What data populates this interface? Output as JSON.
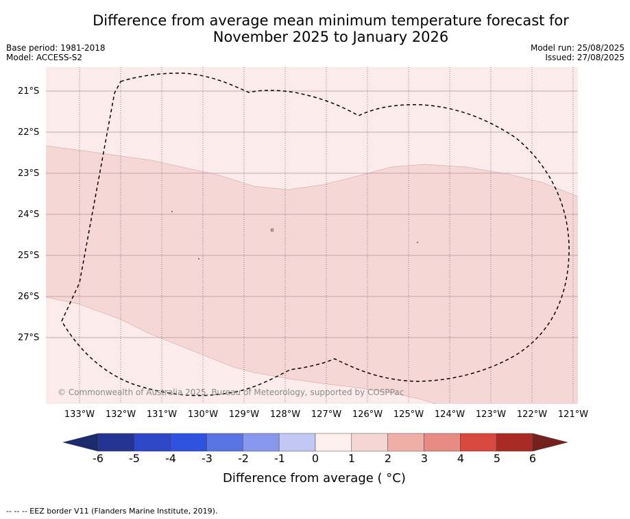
{
  "header": {
    "title_line1": "Difference from average mean minimum temperature forecast for",
    "title_line2": "November 2025 to January 2026",
    "base_period": "Base period: 1981-2018",
    "model": "Model: ACCESS-S2",
    "model_run": "Model run: 25/08/2025",
    "issued": "Issued: 27/08/2025"
  },
  "map": {
    "latitude_labels": [
      "21°S",
      "22°S",
      "23°S",
      "24°S",
      "25°S",
      "26°S",
      "27°S"
    ],
    "longitude_labels": [
      "133°W",
      "132°W",
      "131°W",
      "130°W",
      "129°W",
      "128°W",
      "127°W",
      "126°W",
      "125°W",
      "124°W",
      "123°W",
      "122°W",
      "121°W"
    ],
    "copyright": "© Commonwealth of Australia 2025, Bureau of Meteorology, supported by COSPPac",
    "colors": {
      "zero_to_one": "#fbeceb",
      "one_to_two": "#f5d7d5"
    }
  },
  "colorbar": {
    "title": "Difference from average ( °C)",
    "ticks": [
      "-6",
      "-5",
      "-4",
      "-3",
      "-2",
      "-1",
      "0",
      "1",
      "2",
      "3",
      "4",
      "5",
      "6"
    ],
    "colors": [
      "#253494",
      "#2d47c8",
      "#2f52e0",
      "#5a73e3",
      "#8896ec",
      "#c2c8f4",
      "#e8ebfa",
      "#fcefec",
      "#f6d6d3",
      "#eeafa8",
      "#e88b82",
      "#d8483f",
      "#a92b24"
    ],
    "extend_min_color": "#1a2a6c",
    "extend_max_color": "#74201c"
  },
  "footer": {
    "legend_text": "--  --  -- EEZ border V11 (Flanders Marine Institute, 2019)."
  }
}
